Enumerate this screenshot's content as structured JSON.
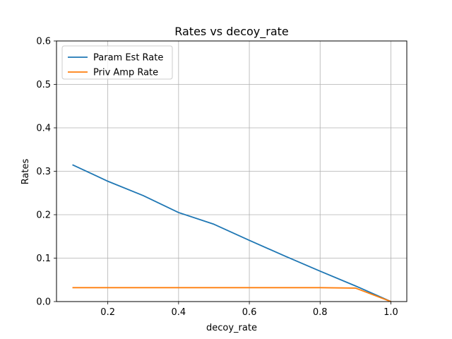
{
  "chart_data": {
    "type": "line",
    "title": "Rates vs decoy_rate",
    "xlabel": "decoy_rate",
    "ylabel": "Rates",
    "xlim": [
      0.055,
      1.045
    ],
    "ylim": [
      0,
      0.6
    ],
    "xticks": [
      0.2,
      0.4,
      0.6,
      0.8,
      1.0
    ],
    "yticks": [
      0.0,
      0.1,
      0.2,
      0.3,
      0.4,
      0.5,
      0.6
    ],
    "xtick_labels": [
      "0.2",
      "0.4",
      "0.6",
      "0.8",
      "1.0"
    ],
    "ytick_labels": [
      "0.0",
      "0.1",
      "0.2",
      "0.3",
      "0.4",
      "0.5",
      "0.6"
    ],
    "grid": true,
    "legend_position": "top-left",
    "series": [
      {
        "name": "Param Est Rate",
        "color": "#1f77b4",
        "x": [
          0.1,
          0.2,
          0.3,
          0.4,
          0.5,
          0.6,
          0.7,
          0.8,
          0.9,
          1.0
        ],
        "y": [
          0.315,
          0.277,
          0.244,
          0.205,
          0.178,
          0.141,
          0.105,
          0.07,
          0.036,
          0.0
        ]
      },
      {
        "name": "Priv Amp Rate",
        "color": "#ff7f0e",
        "x": [
          0.1,
          0.2,
          0.3,
          0.4,
          0.5,
          0.6,
          0.7,
          0.8,
          0.9,
          1.0
        ],
        "y": [
          0.032,
          0.032,
          0.032,
          0.032,
          0.032,
          0.032,
          0.032,
          0.032,
          0.031,
          0.0
        ]
      }
    ]
  }
}
